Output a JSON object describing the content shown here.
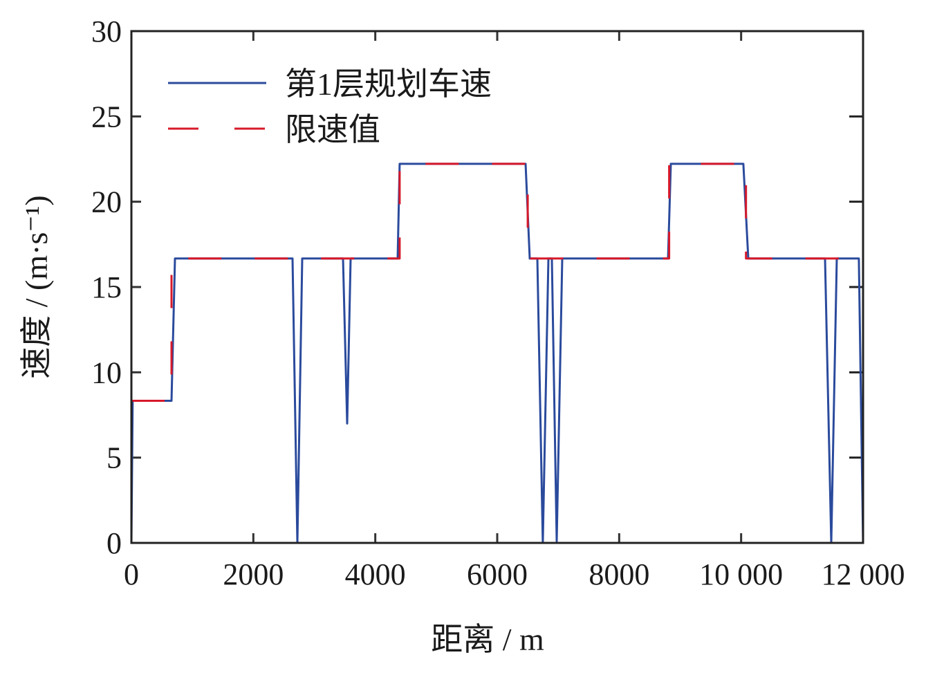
{
  "chart_data": {
    "type": "line",
    "title": "",
    "xlabel": "距离 / m",
    "ylabel": "速度 / (m·s⁻¹)",
    "xlim": [
      0,
      12000
    ],
    "ylim": [
      0,
      30
    ],
    "xticks": [
      0,
      2000,
      4000,
      6000,
      8000,
      10000,
      12000
    ],
    "xtick_labels": [
      "0",
      "2000",
      "4000",
      "6000",
      "8000",
      "10 000",
      "12 000"
    ],
    "yticks": [
      0,
      5,
      10,
      15,
      20,
      25,
      30
    ],
    "ytick_labels": [
      "0",
      "5",
      "10",
      "15",
      "20",
      "25",
      "30"
    ],
    "grid": false,
    "legend_position": "top-left",
    "series": [
      {
        "name": "第1层规划车速",
        "color": "#2a4a9c",
        "style": "solid",
        "x": [
          0,
          20,
          658,
          715,
          2643,
          2722,
          2801,
          3471,
          3539,
          3595,
          4367,
          4400,
          6465,
          6533,
          6658,
          6748,
          6839,
          6896,
          6975,
          7066,
          8801,
          8847,
          10037,
          10117,
          11376,
          11478,
          11569,
          11931,
          12000
        ],
        "y": [
          0,
          8.33,
          8.33,
          16.67,
          16.67,
          0,
          16.67,
          16.67,
          7.0,
          16.67,
          16.67,
          22.22,
          22.22,
          16.67,
          16.67,
          0,
          16.67,
          16.67,
          0.1,
          16.67,
          16.67,
          22.22,
          22.22,
          16.67,
          16.67,
          0,
          16.67,
          16.67,
          0
        ]
      },
      {
        "name": "限速值",
        "color": "#d7192a",
        "style": "dashed",
        "x": [
          0,
          658,
          658,
          4400,
          4400,
          6500,
          6500,
          8820,
          8820,
          10080,
          10080,
          12000
        ],
        "y": [
          8.33,
          8.33,
          16.67,
          16.67,
          22.22,
          22.22,
          16.67,
          16.67,
          22.22,
          22.22,
          16.67,
          16.67
        ]
      }
    ]
  }
}
